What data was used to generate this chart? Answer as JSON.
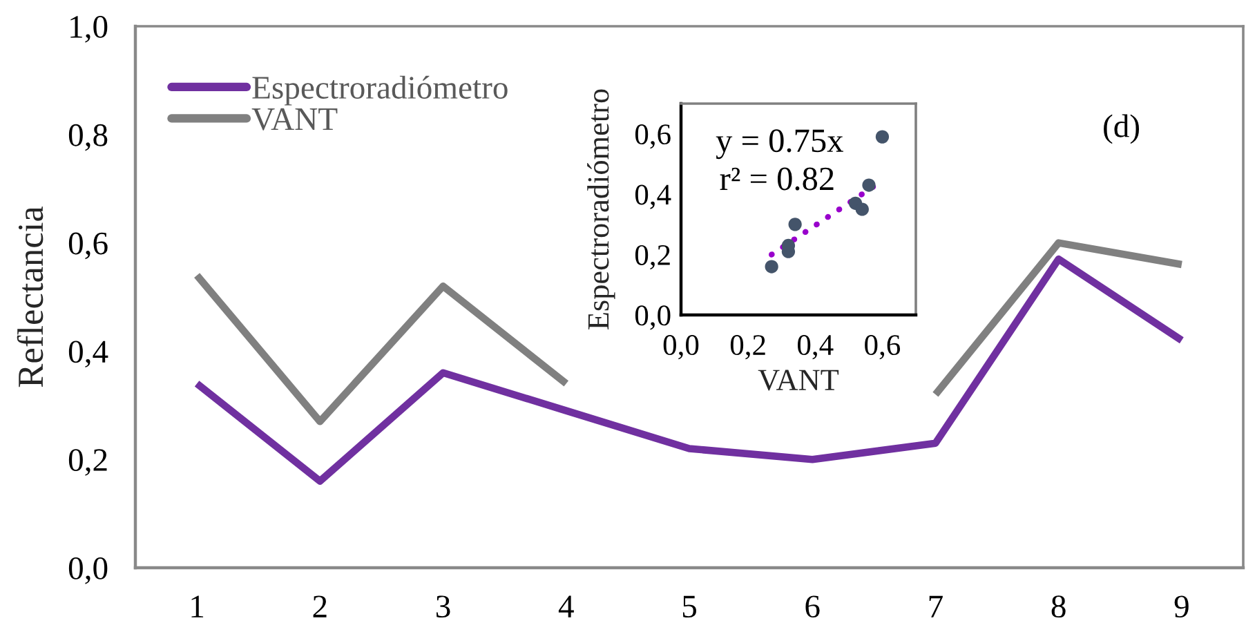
{
  "chart_data": [
    {
      "type": "line",
      "categories": [
        "1",
        "2",
        "3",
        "4",
        "5",
        "6",
        "7",
        "8",
        "9"
      ],
      "ylabel": "Reflectancia",
      "series": [
        {
          "name": "Espectroradiómetro",
          "color": "#7030a0",
          "values": [
            0.34,
            0.16,
            0.36,
            0.29,
            0.22,
            0.2,
            0.23,
            0.57,
            0.42
          ]
        },
        {
          "name": "VANT",
          "color": "#808080",
          "values": [
            0.54,
            0.27,
            0.52,
            0.34,
            null,
            null,
            0.32,
            0.6,
            0.56
          ]
        }
      ],
      "ylim": [
        0,
        1
      ],
      "yticks": [
        {
          "value": 0,
          "label": "0,0"
        },
        {
          "value": 0.2,
          "label": "0,2"
        },
        {
          "value": 0.4,
          "label": "0,4"
        },
        {
          "value": 0.6,
          "label": "0,6"
        },
        {
          "value": 0.8,
          "label": "0,8"
        },
        {
          "value": 1,
          "label": "1,0"
        }
      ],
      "legend": "top left",
      "line_style": "solid",
      "annotations": [
        "(d)"
      ]
    },
    {
      "type": "scatter",
      "xlabel": "VANT",
      "ylabel": "Espectroradiómetro",
      "x": [
        0.27,
        0.32,
        0.32,
        0.34,
        0.52,
        0.54,
        0.56,
        0.6
      ],
      "series": [
        {
          "color": "#44546a",
          "marker": "circle",
          "values": [
            0.16,
            0.21,
            0.23,
            0.3,
            0.37,
            0.35,
            0.43,
            0.59
          ]
        },
        {
          "type": "line",
          "color": "#9900cc",
          "x": [
            0.27,
            0.58
          ],
          "values": [
            0.2,
            0.43
          ],
          "line_style": "dotted"
        }
      ],
      "xlim": [
        0,
        0.7
      ],
      "ylim": [
        0,
        0.7
      ],
      "xticks": [
        {
          "value": 0,
          "label": "0,0"
        },
        {
          "value": 0.2,
          "label": "0,2"
        },
        {
          "value": 0.4,
          "label": "0,4"
        },
        {
          "value": 0.6,
          "label": "0,6"
        }
      ],
      "yticks": [
        {
          "value": 0,
          "label": "0,0"
        },
        {
          "value": 0.2,
          "label": "0,2"
        },
        {
          "value": 0.4,
          "label": "0,4"
        },
        {
          "value": 0.6,
          "label": "0,6"
        }
      ],
      "annotations": [
        "y = 0.75x",
        "r² = 0.82"
      ]
    }
  ]
}
